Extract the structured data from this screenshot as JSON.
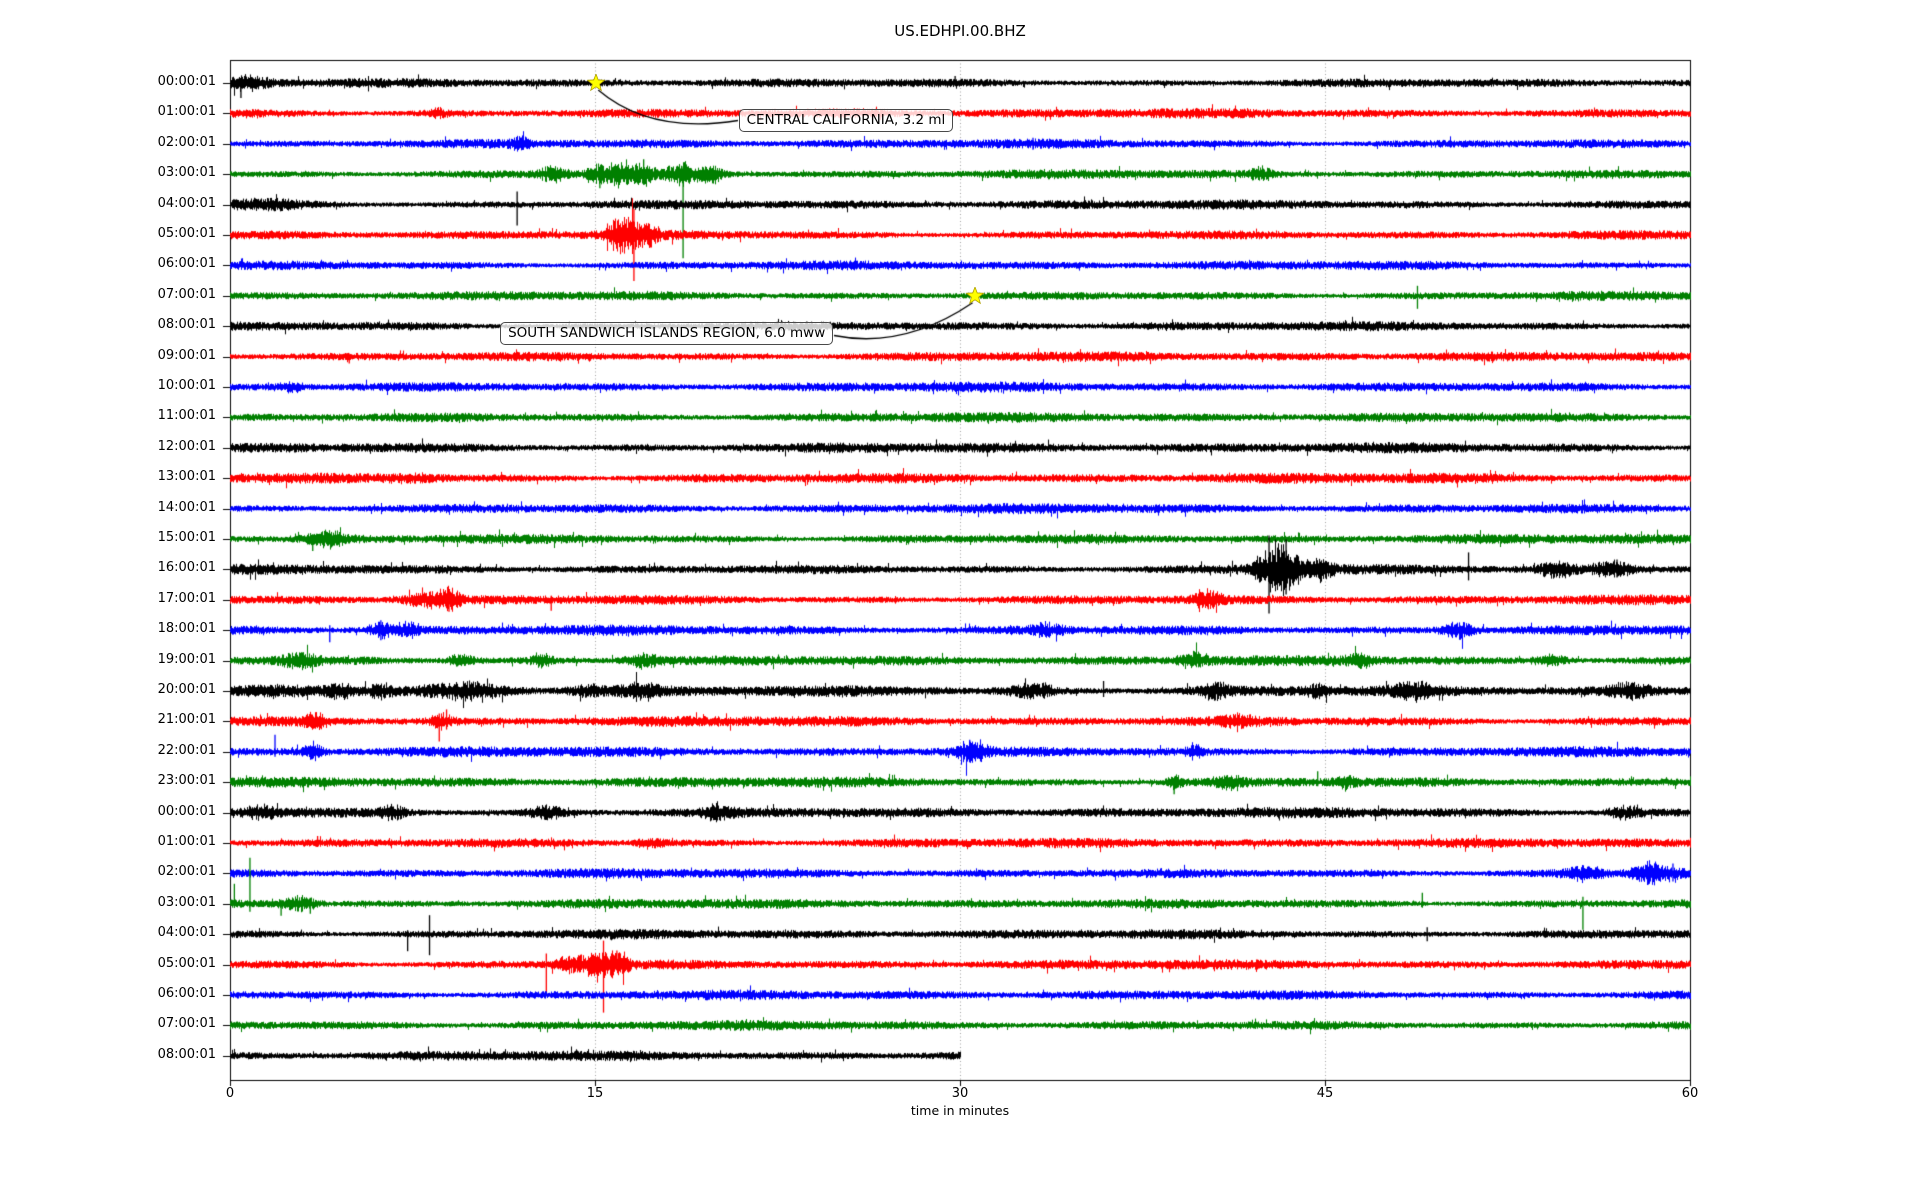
{
  "window": {
    "title": "US.EDHPI.00.BHZ"
  },
  "chart_data": {
    "type": "line",
    "title": "US.EDHPI.00.BHZ",
    "xlabel": "time in minutes",
    "xlim": [
      0,
      60
    ],
    "x_ticks": [
      "0",
      "15",
      "30",
      "45",
      "60"
    ],
    "grid": "vertical dotted lines at 15, 30, 45 minutes",
    "grid_color": "#a0a0a0",
    "star_color": "#ffff00",
    "color_cycle": [
      "#000000",
      "#ff0000",
      "#0000ff",
      "#008000"
    ],
    "y_axis_description": "one one-hour trace per row, label = trace start time",
    "rows": [
      {
        "label": "00:00:01",
        "color": "#000000",
        "amp": 2.6,
        "bursts": [
          [
            0.7,
            0.6,
            5
          ]
        ],
        "spikes": [
          [
            0.45,
            5,
            15
          ],
          [
            29.8,
            7,
            3
          ]
        ]
      },
      {
        "label": "01:00:01",
        "color": "#ff0000",
        "amp": 2.7,
        "bursts": [
          [
            8.5,
            0.3,
            3
          ],
          [
            26,
            1.5,
            1.5
          ]
        ]
      },
      {
        "label": "02:00:01",
        "color": "#0000ff",
        "amp": 2.7,
        "bursts": [
          [
            11.9,
            0.25,
            4
          ]
        ],
        "spikes": [
          [
            33,
            6,
            6
          ]
        ]
      },
      {
        "label": "03:00:01",
        "color": "#008000",
        "amp": 2.6,
        "bursts": [
          [
            13.3,
            0.4,
            5
          ],
          [
            15.1,
            0.3,
            6
          ],
          [
            16,
            0.35,
            9
          ],
          [
            17,
            0.3,
            8
          ],
          [
            18.6,
            0.5,
            7
          ],
          [
            19.8,
            0.3,
            6
          ],
          [
            42.4,
            0.3,
            4
          ]
        ],
        "spikes": [
          [
            15.2,
            4,
            14
          ],
          [
            17,
            15,
            6
          ],
          [
            18.62,
            8,
            84
          ]
        ]
      },
      {
        "label": "04:00:01",
        "color": "#000000",
        "amp": 2.7,
        "bursts": [
          [
            1.5,
            1,
            3
          ]
        ],
        "spikes": [
          [
            11.8,
            13,
            21
          ]
        ]
      },
      {
        "label": "05:00:01",
        "color": "#ff0000",
        "amp": 2.7,
        "bursts": [
          [
            15.8,
            0.3,
            6
          ],
          [
            16.3,
            0.4,
            12
          ],
          [
            17.2,
            0.3,
            7
          ]
        ],
        "spikes": [
          [
            16.6,
            26,
            46
          ]
        ]
      },
      {
        "label": "06:00:01",
        "color": "#0000ff",
        "amp": 2.7
      },
      {
        "label": "07:00:01",
        "color": "#008000",
        "amp": 2.6,
        "spikes": [
          [
            48.8,
            10,
            13
          ]
        ]
      },
      {
        "label": "08:00:01",
        "color": "#000000",
        "amp": 2.6
      },
      {
        "label": "09:00:01",
        "color": "#ff0000",
        "amp": 2.8,
        "spikes": [
          [
            4.9,
            3,
            7
          ]
        ]
      },
      {
        "label": "10:00:01",
        "color": "#0000ff",
        "amp": 2.8,
        "bursts": [
          [
            2.5,
            0.3,
            3
          ]
        ]
      },
      {
        "label": "11:00:01",
        "color": "#008000",
        "amp": 2.8
      },
      {
        "label": "12:00:01",
        "color": "#000000",
        "amp": 3
      },
      {
        "label": "13:00:01",
        "color": "#ff0000",
        "amp": 3,
        "bursts": [
          [
            7.5,
            0.8,
            2
          ]
        ]
      },
      {
        "label": "14:00:01",
        "color": "#0000ff",
        "amp": 2.8
      },
      {
        "label": "15:00:01",
        "color": "#008000",
        "amp": 2.8,
        "bursts": [
          [
            4,
            0.5,
            5
          ]
        ],
        "spikes": [
          [
            3.4,
            4,
            12
          ]
        ]
      },
      {
        "label": "16:00:01",
        "color": "#000000",
        "amp": 2.8,
        "bursts": [
          [
            42.8,
            0.5,
            14
          ],
          [
            43.5,
            0.4,
            10
          ],
          [
            44.7,
            0.4,
            7
          ],
          [
            54.5,
            0.5,
            5
          ],
          [
            56.8,
            0.6,
            5
          ]
        ],
        "spikes": [
          [
            42.7,
            34,
            44
          ],
          [
            43.4,
            30,
            25
          ],
          [
            50.9,
            17,
            11
          ],
          [
            57,
            10,
            8
          ]
        ]
      },
      {
        "label": "17:00:01",
        "color": "#ff0000",
        "amp": 2.8,
        "bursts": [
          [
            8.2,
            0.7,
            5
          ],
          [
            9,
            0.3,
            6
          ],
          [
            40.1,
            0.4,
            6
          ]
        ],
        "spikes": [
          [
            9,
            6,
            12
          ],
          [
            13.2,
            4,
            11
          ],
          [
            40.2,
            4,
            9
          ]
        ]
      },
      {
        "label": "18:00:01",
        "color": "#0000ff",
        "amp": 2.9,
        "bursts": [
          [
            6.2,
            0.3,
            5
          ],
          [
            7.3,
            0.3,
            5
          ],
          [
            33.5,
            0.5,
            4
          ],
          [
            50.5,
            0.5,
            6
          ]
        ],
        "spikes": [
          [
            4.1,
            5,
            12
          ],
          [
            6.2,
            10,
            10
          ]
        ]
      },
      {
        "label": "19:00:01",
        "color": "#008000",
        "amp": 2.9,
        "bursts": [
          [
            2.8,
            0.5,
            4
          ],
          [
            9.5,
            0.4,
            4
          ],
          [
            12.8,
            0.3,
            4
          ],
          [
            17,
            0.5,
            4
          ],
          [
            39.6,
            0.4,
            5
          ],
          [
            46.4,
            0.4,
            4
          ],
          [
            54.3,
            0.5,
            4
          ]
        ]
      },
      {
        "label": "20:00:01",
        "color": "#000000",
        "amp": 3.3,
        "bursts": [
          [
            4.5,
            0.3,
            4
          ],
          [
            6.2,
            0.3,
            4
          ],
          [
            9.7,
            1,
            5
          ],
          [
            14.7,
            0.5,
            4
          ],
          [
            16.8,
            0.6,
            5
          ],
          [
            33,
            0.6,
            5
          ],
          [
            40.5,
            0.4,
            5
          ],
          [
            44.6,
            0.3,
            4
          ],
          [
            48.6,
            0.5,
            5
          ],
          [
            57.5,
            0.6,
            5
          ]
        ],
        "spikes": [
          [
            35.9,
            10,
            6
          ]
        ]
      },
      {
        "label": "21:00:01",
        "color": "#ff0000",
        "amp": 3,
        "bursts": [
          [
            3.5,
            0.3,
            6
          ],
          [
            8.7,
            0.3,
            5
          ],
          [
            41.4,
            0.4,
            4
          ]
        ],
        "spikes": [
          [
            8.6,
            8,
            20
          ],
          [
            8.9,
            12,
            8
          ]
        ]
      },
      {
        "label": "22:00:01",
        "color": "#0000ff",
        "amp": 3,
        "bursts": [
          [
            3.4,
            0.3,
            5
          ],
          [
            30.5,
            0.4,
            8
          ],
          [
            39.6,
            0.2,
            5
          ]
        ],
        "spikes": [
          [
            1.85,
            17,
            5
          ],
          [
            30.4,
            12,
            10
          ]
        ]
      },
      {
        "label": "23:00:01",
        "color": "#008000",
        "amp": 3,
        "bursts": [
          [
            38.8,
            0.2,
            5
          ],
          [
            41,
            0.4,
            4
          ],
          [
            45.8,
            0.3,
            4
          ]
        ],
        "spikes": [
          [
            38.8,
            4,
            12
          ],
          [
            44.7,
            11,
            4
          ]
        ]
      },
      {
        "label": "00:00:01",
        "color": "#000000",
        "amp": 3,
        "bursts": [
          [
            1.3,
            0.4,
            4
          ],
          [
            6.7,
            0.4,
            4
          ],
          [
            13,
            0.5,
            4
          ],
          [
            20,
            0.4,
            4
          ],
          [
            57.3,
            0.5,
            4
          ]
        ]
      },
      {
        "label": "01:00:01",
        "color": "#ff0000",
        "amp": 2.8,
        "bursts": [
          [
            17.3,
            0.4,
            3
          ]
        ],
        "spikes": [
          [
            3.6,
            7,
            4
          ]
        ]
      },
      {
        "label": "02:00:01",
        "color": "#0000ff",
        "amp": 2.8,
        "bursts": [
          [
            55.6,
            0.5,
            5
          ],
          [
            58.5,
            0.6,
            7
          ]
        ],
        "spikes": [
          [
            59.3,
            10,
            8
          ]
        ]
      },
      {
        "label": "03:00:01",
        "color": "#008000",
        "amp": 2.8,
        "bursts": [
          [
            2.8,
            0.5,
            5
          ]
        ],
        "spikes": [
          [
            0.18,
            20,
            4
          ],
          [
            0.82,
            46,
            8
          ],
          [
            2.1,
            4,
            12
          ],
          [
            3.3,
            6,
            10
          ],
          [
            49,
            11,
            4
          ],
          [
            55.6,
            7,
            26
          ]
        ]
      },
      {
        "label": "04:00:01",
        "color": "#000000",
        "amp": 2.8,
        "spikes": [
          [
            7.3,
            4,
            17
          ],
          [
            8.2,
            19,
            21
          ],
          [
            49.2,
            7,
            7
          ]
        ]
      },
      {
        "label": "05:00:01",
        "color": "#ff0000",
        "amp": 2.8,
        "bursts": [
          [
            14,
            0.5,
            5
          ],
          [
            15.2,
            0.5,
            8
          ],
          [
            16,
            0.3,
            6
          ]
        ],
        "spikes": [
          [
            13,
            11,
            29
          ],
          [
            15.35,
            24,
            48
          ],
          [
            15.9,
            14,
            5
          ]
        ]
      },
      {
        "label": "06:00:01",
        "color": "#0000ff",
        "amp": 2.8
      },
      {
        "label": "07:00:01",
        "color": "#008000",
        "amp": 2.7
      },
      {
        "label": "08:00:01",
        "color": "#000000",
        "amp": 2.8,
        "end": 30
      }
    ],
    "events": [
      {
        "label": "CENTRAL CALIFORNIA, 3.2 ml",
        "star_row": 0,
        "star_minute": 15.05,
        "box_row": 1.22,
        "box_left_minute": 20.9,
        "connect_from": "left"
      },
      {
        "label": "SOUTH SANDWICH ISLANDS REGION, 6.0 mww",
        "star_row": 7,
        "star_minute": 30.6,
        "box_row": 8.22,
        "box_left_minute": 11.1,
        "connect_from": "right"
      }
    ]
  }
}
